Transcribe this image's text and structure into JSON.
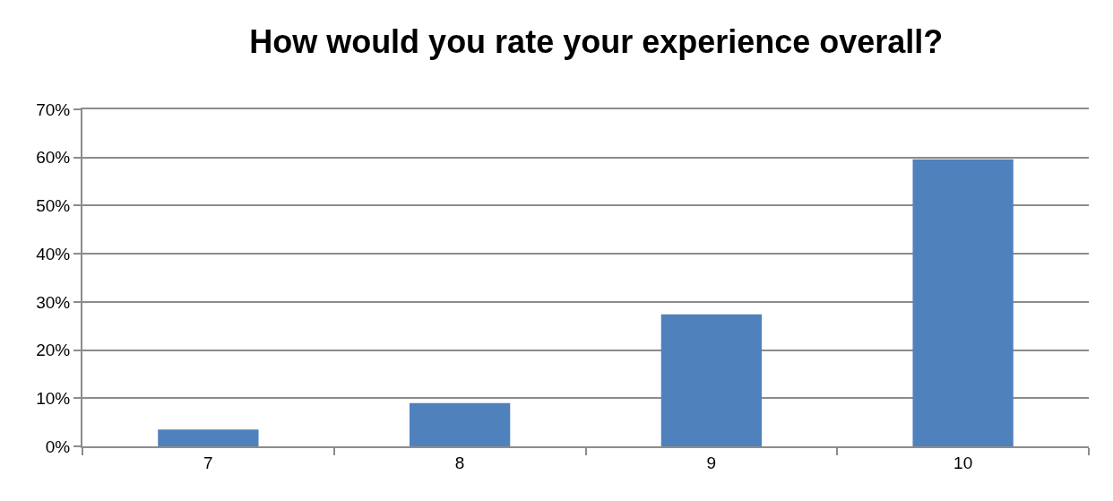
{
  "chart_data": {
    "type": "bar",
    "title": "How would you rate your experience overall?",
    "categories": [
      "7",
      "8",
      "9",
      "10"
    ],
    "values": [
      3.5,
      9.0,
      27.4,
      59.6
    ],
    "color": "#4f81bd",
    "ylim": [
      0,
      70
    ],
    "yticks": [
      {
        "value": 0,
        "label": "0%"
      },
      {
        "value": 10,
        "label": "10%"
      },
      {
        "value": 20,
        "label": "20%"
      },
      {
        "value": 30,
        "label": "30%"
      },
      {
        "value": 40,
        "label": "40%"
      },
      {
        "value": 50,
        "label": "50%"
      },
      {
        "value": 60,
        "label": "60%"
      },
      {
        "value": 70,
        "label": "70%"
      }
    ],
    "grid": "y"
  }
}
